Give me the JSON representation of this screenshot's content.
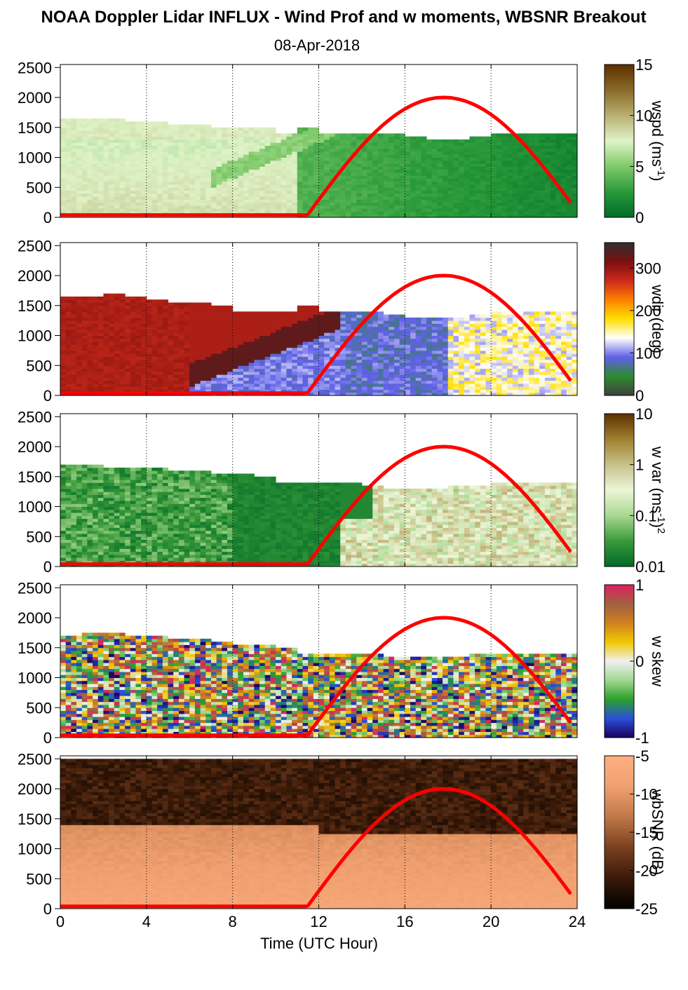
{
  "figure": {
    "title": "NOAA Doppler Lidar INFLUX - Wind Prof and w moments, WBSNR Breakout",
    "subtitle": "08-Apr-2018",
    "xlabel": "Time (UTC Hour)",
    "xticks": [
      0,
      4,
      8,
      12,
      16,
      20,
      24
    ],
    "xlim": [
      0,
      24
    ],
    "yticks": [
      0,
      500,
      1000,
      1500,
      2000,
      2500
    ],
    "ylim": [
      0,
      2550
    ],
    "vgrid_hours": [
      4,
      8,
      12,
      16,
      20,
      24
    ],
    "overlay_color": "#ff0000"
  },
  "chart_data": [
    {
      "type": "heatmap",
      "variable": "wspd",
      "cbar_label": "wspd (ms-1)",
      "cbar_label_parts": [
        "wspd (ms",
        "-1",
        ")"
      ],
      "cbar_ticks": [
        0,
        5,
        10,
        15
      ],
      "cbar_range": [
        0,
        15
      ],
      "colors": [
        "#006b28",
        "#2a9a3a",
        "#7fca6a",
        "#dff3c8",
        "#b8b070",
        "#8a6a28",
        "#5c3000"
      ],
      "data_top_m": [
        1650,
        1650,
        1650,
        1600,
        1600,
        1550,
        1550,
        1500,
        1500,
        1500,
        1450,
        1500,
        1450,
        1400,
        1400,
        1400,
        1350,
        1300,
        1300,
        1350,
        1400,
        1450,
        1400,
        1400
      ],
      "overlay_peak_m": 2000,
      "overlay_peak_hour": 17.8,
      "overlay_start_hour": 11.4
    },
    {
      "type": "heatmap",
      "variable": "wdir",
      "cbar_label": "wdir (deg)",
      "cbar_label_parts": [
        "wdir (deg)"
      ],
      "cbar_ticks": [
        0,
        100,
        200,
        300
      ],
      "cbar_range": [
        0,
        360
      ],
      "colors": [
        "#404040",
        "#2e8b2e",
        "#6060e8",
        "#ffffff",
        "#ffe000",
        "#ff8000",
        "#cc2a1a",
        "#7a0f0f",
        "#303030"
      ],
      "data_top_m": [
        1650,
        1650,
        1700,
        1650,
        1600,
        1550,
        1550,
        1500,
        1450,
        1450,
        1450,
        1500,
        1450,
        1400,
        1400,
        1350,
        1300,
        1300,
        1300,
        1350,
        1400,
        1450,
        1400,
        1400
      ],
      "overlay_peak_m": 2000,
      "overlay_peak_hour": 17.8,
      "overlay_start_hour": 11.4
    },
    {
      "type": "heatmap",
      "variable": "w var",
      "cbar_label": "w var (ms-1)2",
      "cbar_label_parts": [
        "w var (ms",
        "-1",
        ")",
        "2"
      ],
      "cbar_ticks": [
        "0.01",
        "0.1",
        "1",
        "10"
      ],
      "cbar_scale": "log",
      "cbar_range": [
        0.01,
        10
      ],
      "colors": [
        "#006b28",
        "#3a9a3a",
        "#a8d890",
        "#ecf6d8",
        "#c8c088",
        "#a08030",
        "#5c3000"
      ],
      "data_top_m": [
        1700,
        1700,
        1650,
        1650,
        1650,
        1600,
        1600,
        1550,
        1550,
        1500,
        1450,
        1450,
        1450,
        1400,
        1350,
        1300,
        1300,
        1300,
        1350,
        1350,
        1400,
        1400,
        1400,
        1400
      ],
      "overlay_peak_m": 2000,
      "overlay_peak_hour": 17.8,
      "overlay_start_hour": 11.4
    },
    {
      "type": "heatmap",
      "variable": "w skew",
      "cbar_label": "w skew",
      "cbar_label_parts": [
        "w skew"
      ],
      "cbar_ticks": [
        -1,
        0,
        1
      ],
      "cbar_range": [
        -1,
        1
      ],
      "colors": [
        "#1a0060",
        "#2a50d8",
        "#2aa02a",
        "#a0d890",
        "#f0f0f0",
        "#f0c800",
        "#d08020",
        "#a06040",
        "#e02060"
      ],
      "data_top_m": [
        1700,
        1750,
        1750,
        1700,
        1700,
        1650,
        1650,
        1600,
        1550,
        1550,
        1500,
        1450,
        1450,
        1400,
        1400,
        1350,
        1350,
        1350,
        1350,
        1400,
        1400,
        1400,
        1400,
        1400
      ],
      "overlay_peak_m": 2000,
      "overlay_peak_hour": 17.8,
      "overlay_start_hour": 11.4
    },
    {
      "type": "heatmap",
      "variable": "wbSNR",
      "cbar_label": "wbSNR (dB)",
      "cbar_label_parts": [
        "wbSNR (dB)"
      ],
      "cbar_ticks": [
        -25,
        -20,
        -15,
        -10,
        -5
      ],
      "cbar_range": [
        -25,
        -5
      ],
      "colors": [
        "#000000",
        "#3a1a08",
        "#7a4020",
        "#c07848",
        "#f0a070",
        "#ffb080"
      ],
      "data_top_m": [
        2500,
        2500,
        2500,
        2500,
        2500,
        2500,
        2500,
        2500,
        2500,
        2500,
        2500,
        2500,
        2500,
        2500,
        2500,
        2500,
        2500,
        2500,
        2500,
        2500,
        2500,
        2500,
        2500,
        2500
      ],
      "overlay_peak_m": 2000,
      "overlay_peak_hour": 17.8,
      "overlay_start_hour": 11.4
    }
  ]
}
